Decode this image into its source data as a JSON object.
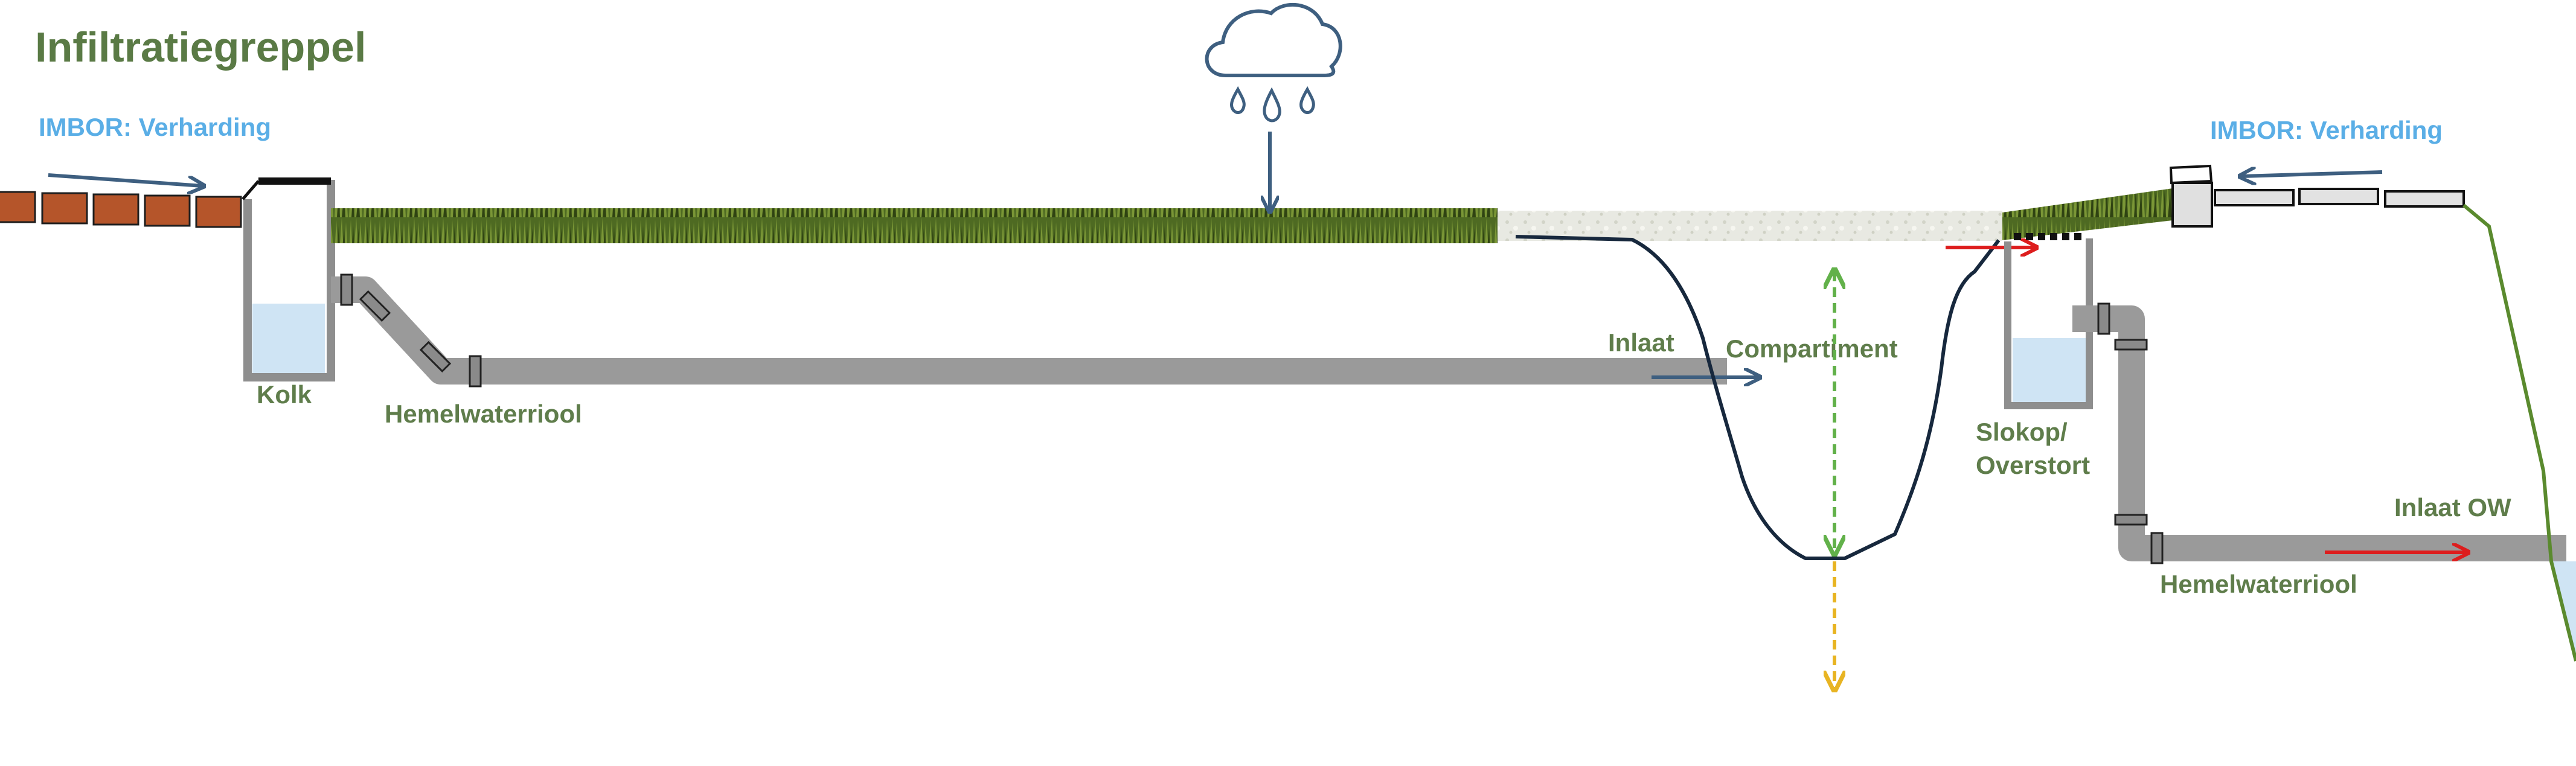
{
  "title": "Infiltratiegreppel",
  "labels": {
    "imbor_left": "IMBOR: Verharding",
    "imbor_right": "IMBOR: Verharding",
    "kolk": "Kolk",
    "hemelwaterriool_left": "Hemelwaterriool",
    "inlaat": "Inlaat",
    "compartiment": "Compartiment",
    "slokop_line1": "Slokop/",
    "slokop_line2": "Overstort",
    "inlaat_ow": "Inlaat OW",
    "hemelwaterriool_right": "Hemelwaterriool"
  },
  "colors": {
    "title": "#5a7a45",
    "label_green": "#5f7d4b",
    "label_blue": "#5aaee6",
    "arrow_blue": "#3e5f80",
    "arrow_red": "#dd1d1d",
    "arrow_green_dashed": "#62b14a",
    "arrow_yellow_dashed": "#e8b422",
    "pipe": "#9a9a9a",
    "water": "#cfe4f4",
    "brick": "#b5552a",
    "grass": "#5e7a2a",
    "gravel": "#e6e6df",
    "ditch_outline": "#17283d",
    "slope_line": "#5a8a2e"
  },
  "icons": [
    "rain-cloud-icon",
    "rain-drop-icon"
  ]
}
